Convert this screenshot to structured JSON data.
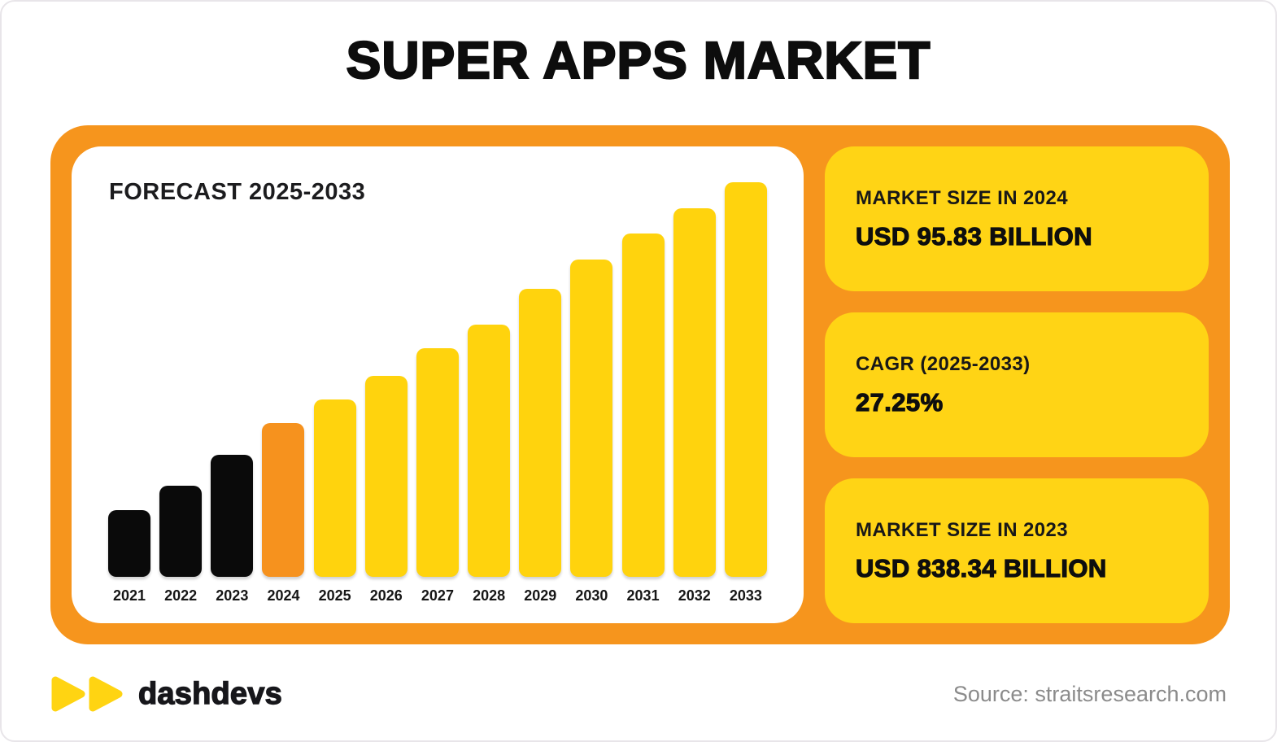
{
  "page": {
    "title": "SUPER APPS MARKET"
  },
  "chart_data": {
    "type": "bar",
    "title": "FORECAST 2025-2033",
    "categories": [
      "2021",
      "2022",
      "2023",
      "2024",
      "2025",
      "2026",
      "2027",
      "2028",
      "2029",
      "2030",
      "2031",
      "2032",
      "2033"
    ],
    "values_relative_pct": [
      17,
      23,
      31,
      39,
      45,
      51,
      58,
      64,
      73,
      80.5,
      87,
      93.5,
      100
    ],
    "bar_colors": [
      "#0a0a0a",
      "#0a0a0a",
      "#0a0a0a",
      "#f6921e",
      "#ffd30d",
      "#ffd30d",
      "#ffd30d",
      "#ffd30d",
      "#ffd30d",
      "#ffd30d",
      "#ffd30d",
      "#ffd30d",
      "#ffd30d"
    ],
    "xlabel": "",
    "ylabel": "",
    "legend": "none",
    "grid": false,
    "notes": "Heights are relative (% of tallest 2033 bar); no y-axis shown. Historical bars 2021-2023 black, 2024 orange highlight, forecast 2025-2033 yellow.",
    "annotations": {
      "market_size_2024": "USD 95.83 BILLION",
      "cagr_2025_2033": "27.25%",
      "market_size_2023": "USD 838.34 BILLION"
    }
  },
  "stat_cards": [
    {
      "label": "MARKET SIZE IN 2024",
      "value": "USD 95.83 BILLION"
    },
    {
      "label": "CAGR (2025-2033)",
      "value": "27.25%"
    },
    {
      "label": "MARKET SIZE IN 2023",
      "value": "USD 838.34 BILLION"
    }
  ],
  "footer": {
    "logo_text": "dashdevs",
    "source": "Source: straitsresearch.com"
  },
  "colors": {
    "panel_orange": "#f6951d",
    "card_yellow": "#ffd415",
    "bar_yellow": "#ffd30d",
    "bar_orange": "#f6921e",
    "bar_black": "#0a0a0a",
    "logo_yellow": "#ffd412",
    "source_gray": "#8b8b8b"
  }
}
